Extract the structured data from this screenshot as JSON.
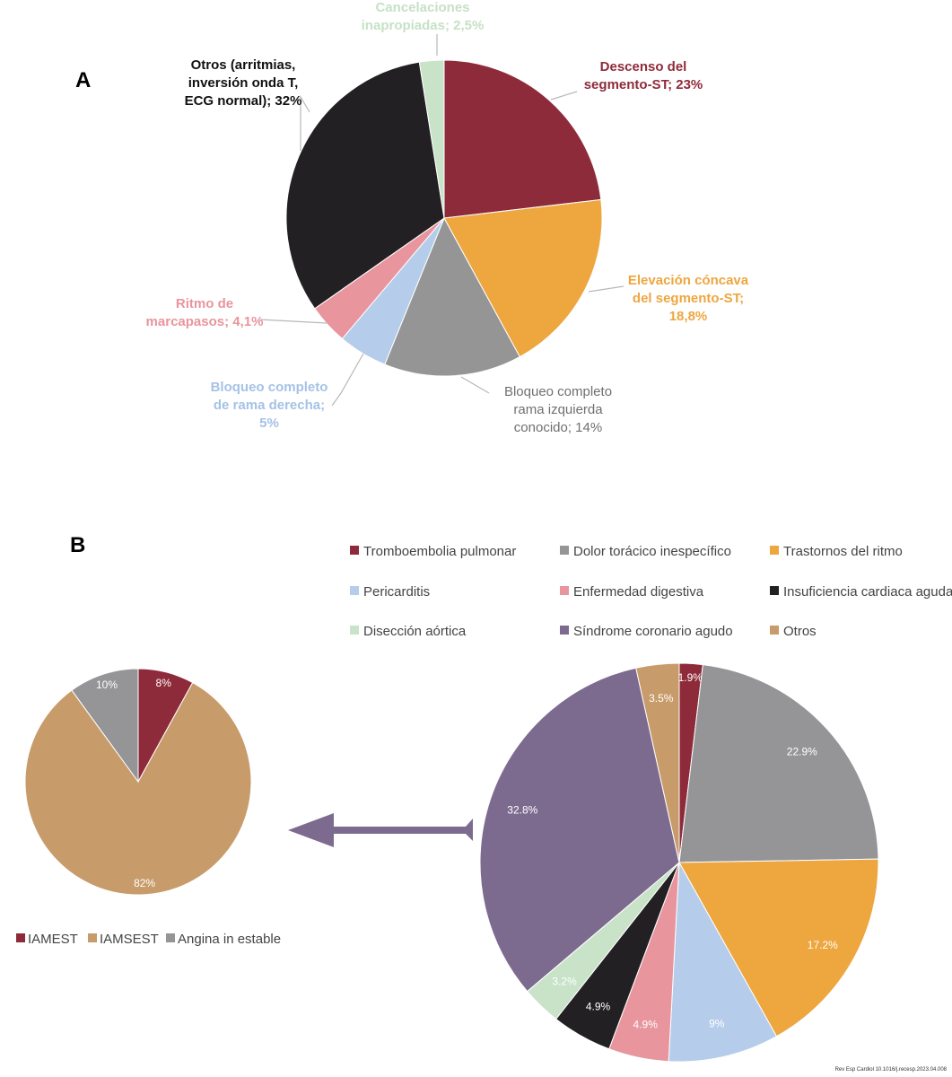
{
  "panel_a_letter": "A",
  "panel_b_letter": "B",
  "credit": "Rev Esp Cardiol 10.1016/j.recesp.2023.04.008",
  "chart_data": [
    {
      "type": "pie",
      "panel": "A",
      "start_angle_deg": 0,
      "slices": [
        {
          "name": "Descenso del segmento-ST; 23%",
          "value": 23,
          "color": "#8e2b3a",
          "label_lines": [
            "Descenso del",
            "segmento-ST; 23%"
          ],
          "label_color": "#8e2b3a",
          "label_style": "bold"
        },
        {
          "name": "Elevación cóncava del segmento-ST; 18,8%",
          "value": 18.8,
          "color": "#eea63f",
          "label_lines": [
            "Elevación cóncava",
            "del segmento-ST;",
            "18,8%"
          ],
          "label_color": "#eea63f",
          "label_style": "bold"
        },
        {
          "name": "Bloqueo completo rama izquierda conocido; 14%",
          "value": 14,
          "color": "#959595",
          "label_lines": [
            "Bloqueo completo",
            "rama izquierda",
            "conocido; 14%"
          ],
          "label_color": "#707070",
          "label_style": "regular"
        },
        {
          "name": "Bloqueo completo de rama derecha; 5%",
          "value": 5,
          "color": "#b5cdea",
          "label_lines": [
            "Bloqueo completo",
            "de rama derecha;",
            "5%"
          ],
          "label_color": "#a5c2e6",
          "label_style": "bold"
        },
        {
          "name": "Ritmo de marcapasos; 4,1%",
          "value": 4.1,
          "color": "#e8959d",
          "label_lines": [
            "Ritmo de",
            "marcapasos; 4,1%"
          ],
          "label_color": "#e8959d",
          "label_style": "bold"
        },
        {
          "name": "Otros (arritmias, inversión onda T, ECG normal); 32%",
          "value": 32,
          "color": "#222022",
          "label_lines": [
            "Otros (arritmias,",
            "inversión onda T,",
            "ECG normal); 32%"
          ],
          "label_color": "#111111",
          "label_style": "bold"
        },
        {
          "name": "Cancelaciones inapropiadas; 2,5%",
          "value": 2.5,
          "color": "#c9e3c9",
          "label_lines": [
            "Cancelaciones",
            "inapropiadas; 2,5%"
          ],
          "label_color": "#c6e1c6",
          "label_style": "bold"
        }
      ]
    },
    {
      "type": "pie",
      "panel": "B",
      "start_angle_deg": 0,
      "slices": [
        {
          "name": "Tromboembolia pulmonar",
          "value": 1.9,
          "label": "1.9%",
          "color": "#8e2b3a"
        },
        {
          "name": "Dolor torácico inespecífico",
          "value": 22.9,
          "label": "22.9%",
          "color": "#959598"
        },
        {
          "name": "Trastornos del ritmo",
          "value": 17.2,
          "label": "17.2%",
          "color": "#eea63f"
        },
        {
          "name": "Pericarditis",
          "value": 9,
          "label": "9%",
          "color": "#b5cdea"
        },
        {
          "name": "Enfermedad digestiva",
          "value": 4.9,
          "label": "4.9%",
          "color": "#e8959d"
        },
        {
          "name": "Insuficiencia cardiaca aguda",
          "value": 4.9,
          "label": "4.9%",
          "color": "#222022"
        },
        {
          "name": "Disección aórtica",
          "value": 3.2,
          "label": "3.2%",
          "color": "#c9e3c9"
        },
        {
          "name": "Síndrome coronario agudo",
          "value": 32.8,
          "label": "32.8%",
          "color": "#7d6b8f"
        },
        {
          "name": "Otros",
          "value": 3.5,
          "label": "3.5%",
          "color": "#c89b6a"
        }
      ],
      "legend": {
        "placement": "top",
        "items": [
          {
            "name": "Tromboembolia pulmonar",
            "color": "#8e2b3a"
          },
          {
            "name": "Dolor torácico inespecífico",
            "color": "#959598"
          },
          {
            "name": "Trastornos del ritmo",
            "color": "#eea63f"
          },
          {
            "name": "Pericarditis",
            "color": "#b5cdea"
          },
          {
            "name": "Enfermedad digestiva",
            "color": "#e8959d"
          },
          {
            "name": "Insuficiencia cardiaca aguda",
            "color": "#222022"
          },
          {
            "name": "Disección aórtica",
            "color": "#c9e3c9"
          },
          {
            "name": "Síndrome coronario agudo",
            "color": "#7d6b8f"
          },
          {
            "name": "Otros",
            "color": "#c89b6a"
          }
        ]
      }
    },
    {
      "type": "pie",
      "panel": "B",
      "start_angle_deg": 0,
      "slices": [
        {
          "name": "IAMEST",
          "value": 8,
          "label": "8%",
          "color": "#8e2b3a"
        },
        {
          "name": "IAMSEST",
          "value": 82,
          "label": "82%",
          "color": "#c89b6a"
        },
        {
          "name": "Angina in estable",
          "value": 10,
          "label": "10%",
          "color": "#959598"
        }
      ],
      "legend": {
        "placement": "bottom",
        "items": [
          {
            "name": "IAMEST",
            "color": "#8e2b3a"
          },
          {
            "name": "IAMSEST",
            "color": "#c89b6a"
          },
          {
            "name": "Angina in estable",
            "color": "#959598"
          }
        ]
      }
    }
  ],
  "arrow_color": "#7d6b8f"
}
